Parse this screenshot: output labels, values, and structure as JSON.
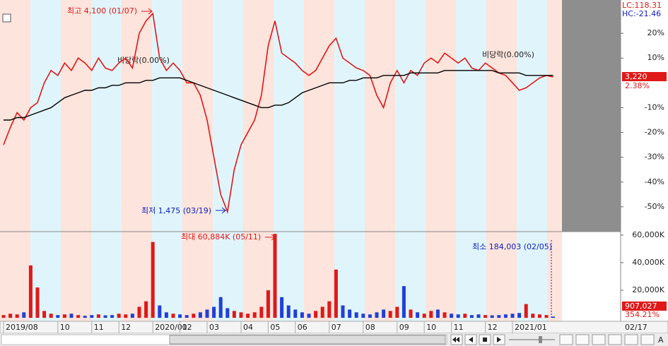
{
  "chart_data": [
    {
      "type": "line",
      "categories": [
        "2019/08",
        null,
        null,
        null,
        null,
        null,
        null,
        null,
        "10",
        null,
        null,
        null,
        null,
        "11",
        null,
        null,
        null,
        "12",
        null,
        null,
        null,
        null,
        "2020/01",
        null,
        null,
        null,
        "02",
        null,
        null,
        null,
        "03",
        null,
        null,
        null,
        null,
        "04",
        null,
        null,
        null,
        "05",
        null,
        null,
        null,
        "06",
        null,
        null,
        null,
        null,
        "07",
        null,
        null,
        null,
        null,
        "08",
        null,
        null,
        null,
        null,
        "09",
        null,
        null,
        null,
        "10",
        null,
        null,
        null,
        "11",
        null,
        null,
        null,
        null,
        "12",
        null,
        null,
        null,
        "2021/01",
        null,
        null,
        null,
        null,
        null,
        null
      ],
      "series": [
        {
          "color": "#e01818",
          "values": [
            -25,
            -18,
            -12,
            -15,
            -10,
            -8,
            0,
            5,
            3,
            8,
            5,
            10,
            8,
            5,
            10,
            6,
            5,
            8,
            10,
            6,
            20,
            25,
            28,
            10,
            5,
            8,
            5,
            0,
            0,
            -5,
            -15,
            -30,
            -45,
            -52,
            -35,
            -25,
            -20,
            -15,
            -5,
            15,
            25,
            12,
            10,
            8,
            5,
            3,
            5,
            10,
            15,
            18,
            10,
            8,
            6,
            5,
            3,
            -5,
            -10,
            0,
            5,
            0,
            5,
            3,
            8,
            10,
            8,
            12,
            10,
            8,
            10,
            6,
            5,
            8,
            6,
            4,
            3,
            0,
            -3,
            -2,
            0,
            2,
            3,
            2.38
          ]
        },
        {
          "color": "#000000",
          "values": [
            -15,
            -15,
            -14,
            -14,
            -13,
            -12,
            -11,
            -10,
            -8,
            -6,
            -5,
            -4,
            -3,
            -3,
            -2,
            -2,
            -1,
            -1,
            0,
            0,
            0,
            1,
            1,
            2,
            2,
            2,
            2,
            1,
            0,
            -1,
            -2,
            -3,
            -4,
            -5,
            -6,
            -7,
            -8,
            -9,
            -10,
            -10,
            -9,
            -9,
            -8,
            -6,
            -4,
            -3,
            -2,
            -1,
            0,
            0,
            0,
            1,
            1,
            2,
            2,
            2,
            3,
            3,
            3,
            3,
            4,
            4,
            4,
            4,
            4,
            5,
            5,
            5,
            5,
            5,
            5,
            5,
            5,
            4,
            4,
            4,
            4,
            3,
            3,
            3,
            3,
            3
          ]
        }
      ],
      "ylim": [
        -60,
        32
      ],
      "yticks": [
        {
          "value": 20,
          "label": "20%"
        },
        {
          "value": 10,
          "label": "10%"
        },
        {
          "value": -10,
          "label": "-10%"
        },
        {
          "value": -20,
          "label": "-20%"
        },
        {
          "value": -30,
          "label": "-30%"
        },
        {
          "value": -40,
          "label": "-40%"
        },
        {
          "value": -50,
          "label": "-50%"
        }
      ],
      "annotations": {
        "high": "최고 4,100 (01/07)",
        "low": "최저 1,475 (03/19)",
        "flat1": "비당락(0.00%)",
        "flat2": "비당락(0.00%)",
        "lc": "LC:118.31",
        "hc": "HC:-21.46",
        "price": "3,220",
        "change": "2.38%",
        "date": "02/17"
      }
    },
    {
      "type": "bar",
      "values": [
        2000,
        3000,
        2500,
        4000,
        38000,
        22000,
        5000,
        3000,
        2000,
        2500,
        3000,
        2000,
        1500,
        2000,
        2500,
        1800,
        2000,
        3000,
        2500,
        3000,
        8000,
        12000,
        55000,
        9000,
        4000,
        3000,
        2500,
        2000,
        3000,
        4000,
        6000,
        8000,
        15000,
        7000,
        5000,
        4000,
        3000,
        4000,
        8000,
        20000,
        60884,
        15000,
        9000,
        6000,
        4000,
        3000,
        5000,
        8000,
        12000,
        35000,
        9000,
        6000,
        4000,
        3000,
        2500,
        4000,
        6000,
        5000,
        8000,
        23000,
        6000,
        4000,
        3000,
        5000,
        6000,
        4000,
        3000,
        2500,
        3000,
        2000,
        2500,
        2000,
        1800,
        2000,
        2500,
        3000,
        3500,
        10000,
        3000,
        2500,
        2000,
        907
      ],
      "ylim": [
        -2500,
        62500
      ],
      "yticks": [
        {
          "value": 60000,
          "label": "60,000K"
        },
        {
          "value": 40000,
          "label": "40,000K"
        },
        {
          "value": 20000,
          "label": "20,000K"
        }
      ],
      "annotations": {
        "max": "최대 60,884K (05/11)",
        "min": "최소 184,003 (02/05)",
        "volume": "907,027",
        "ratio": "354.21%"
      }
    }
  ],
  "toolbar": {
    "font_button": "A"
  }
}
